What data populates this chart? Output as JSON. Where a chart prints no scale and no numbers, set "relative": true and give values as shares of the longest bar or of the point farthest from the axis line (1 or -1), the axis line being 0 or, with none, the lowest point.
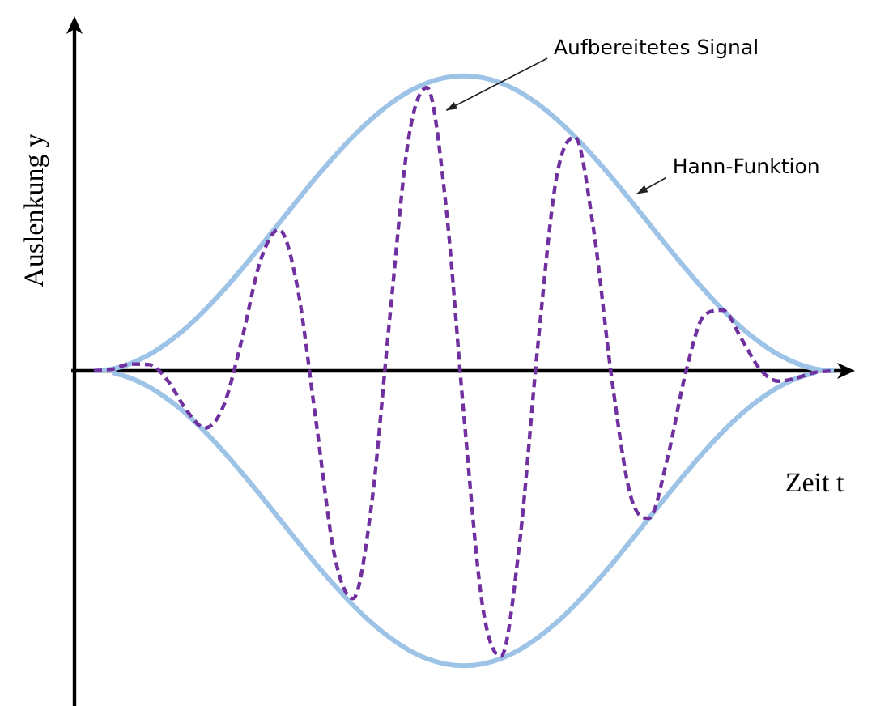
{
  "chart_data": {
    "type": "line",
    "relative": true,
    "xlabel": "Zeit t",
    "ylabel": "Auslenkung y",
    "marker": "none",
    "categories": [
      null,
      null,
      null,
      null,
      null,
      null,
      null,
      null,
      null,
      null,
      null,
      null,
      null,
      null,
      null,
      null,
      null,
      null,
      null,
      null,
      null,
      null,
      null,
      null,
      null,
      null,
      null,
      null,
      null,
      null,
      null,
      null,
      null,
      null,
      null,
      null,
      null,
      null,
      null,
      null,
      null
    ],
    "series": [
      {
        "name": "Hann-Funktion",
        "color": "#9dc3e6",
        "line_style": "solid",
        "values": [
          0,
          0.006,
          0.025,
          0.055,
          0.096,
          0.146,
          0.206,
          0.273,
          0.346,
          0.422,
          0.5,
          0.578,
          0.655,
          0.727,
          0.794,
          0.854,
          0.905,
          0.946,
          0.976,
          0.994,
          1,
          0.994,
          0.976,
          0.946,
          0.905,
          0.854,
          0.794,
          0.727,
          0.655,
          0.578,
          0.5,
          0.422,
          0.346,
          0.273,
          0.206,
          0.146,
          0.096,
          0.055,
          0.025,
          0.006,
          0
        ]
      },
      {
        "color": "#9dc3e6",
        "line_style": "solid",
        "values": [
          null,
          -0.006,
          -0.025,
          -0.055,
          -0.096,
          -0.146,
          -0.206,
          -0.273,
          -0.346,
          -0.422,
          -0.5,
          -0.578,
          -0.655,
          -0.727,
          -0.794,
          -0.854,
          -0.905,
          -0.946,
          -0.976,
          -0.994,
          -1,
          -0.994,
          -0.976,
          -0.946,
          -0.905,
          -0.854,
          -0.794,
          -0.727,
          -0.655,
          -0.578,
          -0.5,
          -0.422,
          -0.346,
          -0.273,
          -0.206,
          -0.146,
          -0.096,
          -0.055,
          -0.025,
          -0.006,
          null
        ]
      },
      {
        "name": "Aufbereitetes Signal",
        "color": "#7030a0",
        "line_style": "dashed",
        "values": [
          0,
          0.006,
          0.023,
          0.021,
          -0.034,
          -0.133,
          -0.194,
          -0.12,
          0.107,
          0.373,
          0.479,
          0.283,
          -0.168,
          -0.624,
          -0.772,
          -0.457,
          0.185,
          0.784,
          0.96,
          0.577,
          -0.151,
          -0.794,
          -0.968,
          -0.59,
          0.088,
          0.653,
          0.792,
          0.484,
          -0.029,
          -0.421,
          -0.5,
          -0.297,
          -0.003,
          0.189,
          0.206,
          0.109,
          0.006,
          -0.035,
          -0.024,
          -0.005,
          0
        ]
      }
    ]
  }
}
